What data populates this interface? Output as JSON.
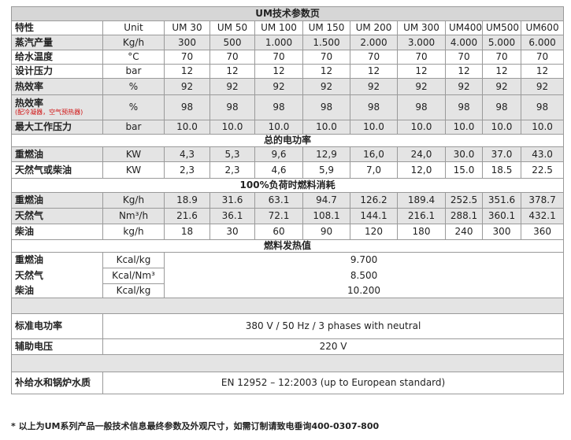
{
  "title": "UM技术参数页",
  "header": [
    "特性",
    "Unit",
    "UM 30",
    "UM 50",
    "UM 100",
    "UM 150",
    "UM 200",
    "UM 300",
    "UM400",
    "UM500",
    "UM600"
  ],
  "specs": [
    {
      "label": "蒸汽产量",
      "unit": "Kg/h",
      "values": [
        "300",
        "500",
        "1.000",
        "1.500",
        "2.000",
        "3.000",
        "4.000",
        "5.000",
        "6.000"
      ]
    },
    {
      "label": "给水温度",
      "unit": "°C",
      "values": [
        "70",
        "70",
        "70",
        "70",
        "70",
        "70",
        "70",
        "70",
        "70"
      ]
    },
    {
      "label": "设计压力",
      "unit": "bar",
      "values": [
        "12",
        "12",
        "12",
        "12",
        "12",
        "12",
        "12",
        "12",
        "12"
      ]
    },
    {
      "label": "热效率",
      "unit": "%",
      "values": [
        "92",
        "92",
        "92",
        "92",
        "92",
        "92",
        "92",
        "92",
        "92"
      ]
    },
    {
      "label": "热效率",
      "note": "(配冷凝器，空气预热器)",
      "unit": "%",
      "values": [
        "98",
        "98",
        "98",
        "98",
        "98",
        "98",
        "98",
        "98",
        "98"
      ]
    },
    {
      "label": "最大工作压力",
      "unit": "bar",
      "values": [
        "10.0",
        "10.0",
        "10.0",
        "10.0",
        "10.0",
        "10.0",
        "10.0",
        "10.0",
        "10.0"
      ]
    }
  ],
  "power": {
    "heading": "总的电功率",
    "rows": [
      {
        "label": "重燃油",
        "unit": "KW",
        "values": [
          "4,3",
          "5,3",
          "9,6",
          "12,9",
          "16,0",
          "24,0",
          "30.0",
          "37.0",
          "43.0"
        ]
      },
      {
        "label": "天然气或柴油",
        "unit": "KW",
        "values": [
          "2,3",
          "2,3",
          "4,6",
          "5,9",
          "7,0",
          "12,0",
          "15.0",
          "18.5",
          "22.5"
        ]
      }
    ]
  },
  "consumption": {
    "heading": "100%负荷时燃料消耗",
    "rows": [
      {
        "label": "重燃油",
        "unit": "Kg/h",
        "values": [
          "18.9",
          "31.6",
          "63.1",
          "94.7",
          "126.2",
          "189.4",
          "252.5",
          "351.6",
          "378.7"
        ]
      },
      {
        "label": "天然气",
        "unit": "Nm³/h",
        "values": [
          "21.6",
          "36.1",
          "72.1",
          "108.1",
          "144.1",
          "216.1",
          "288.1",
          "360.1",
          "432.1"
        ]
      },
      {
        "label": "柴油",
        "unit": "kg/h",
        "values": [
          "18",
          "30",
          "60",
          "90",
          "120",
          "180",
          "240",
          "300",
          "360"
        ]
      }
    ]
  },
  "heating": {
    "heading": "燃料发热值",
    "rows": [
      {
        "label": "重燃油",
        "unit": "Kcal/kg",
        "value": "9.700"
      },
      {
        "label": "天然气",
        "unit": "Kcal/Nm³",
        "value": "8.500"
      },
      {
        "label": "柴油",
        "unit": "Kcal/kg",
        "value": "10.200"
      }
    ]
  },
  "electrical": [
    {
      "label": "标准电功率",
      "value": "380 V / 50 Hz / 3 phases with neutral"
    },
    {
      "label": "辅助电压",
      "value": "220 V"
    }
  ],
  "water": {
    "label": "补给水和锅炉水质",
    "value": "EN 12952 – 12:2003 (up to European standard)"
  },
  "footnote": "* 以上为UM系列产品一般技术信息最终参数及外观尺寸，如需订制请致电垂询400-0307-800"
}
